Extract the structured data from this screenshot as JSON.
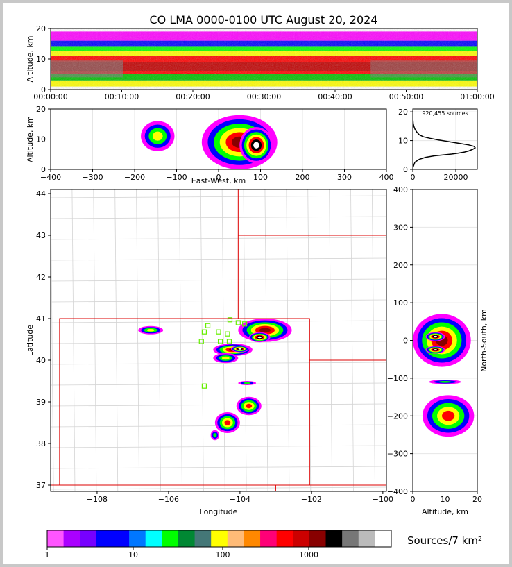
{
  "title": "CO LMA 0000-0100 UTC August 20, 2024",
  "chart_data": [
    {
      "id": "time-height",
      "type": "heatmap",
      "xlabel": "",
      "ylabel": "Altitude, km",
      "xticks": [
        "00:00:00",
        "00:10:00",
        "00:20:00",
        "00:30:00",
        "00:40:00",
        "00:50:00",
        "01:00:00"
      ],
      "yticks": [
        0,
        10,
        20
      ],
      "ylim": [
        0,
        20
      ],
      "bands": [
        {
          "from": 1,
          "to": 3,
          "color": "#ffff00"
        },
        {
          "from": 3,
          "to": 5,
          "color": "#00c000"
        },
        {
          "from": 5,
          "to": 11,
          "color": "#ff0000"
        },
        {
          "from": 6,
          "to": 9,
          "color": "#c00000"
        },
        {
          "from": 11,
          "to": 12.5,
          "color": "#ffff00"
        },
        {
          "from": 12.5,
          "to": 14,
          "color": "#00ff00"
        },
        {
          "from": 14,
          "to": 16,
          "color": "#0000ff"
        },
        {
          "from": 16,
          "to": 19,
          "color": "#ff00ff"
        }
      ]
    },
    {
      "id": "ew-altitude",
      "type": "heatmap",
      "xlabel": "East-West, km",
      "ylabel": "Altitude, km",
      "xlim": [
        -400,
        400
      ],
      "ylim": [
        0,
        20
      ],
      "xticks": [
        -400,
        -300,
        -200,
        -100,
        0,
        100,
        200,
        300,
        400
      ],
      "yticks": [
        0,
        10,
        20
      ],
      "blobs": [
        {
          "x": -145,
          "y": 11,
          "rx": 40,
          "ry": 5,
          "level": 3
        },
        {
          "x": 50,
          "y": 9,
          "rx": 90,
          "ry": 9,
          "level": 5
        },
        {
          "x": 90,
          "y": 8,
          "rx": 40,
          "ry": 6,
          "level": 6
        }
      ]
    },
    {
      "id": "altitude-histogram",
      "type": "line",
      "annotation": "920,455 sources",
      "xlim": [
        0,
        30000
      ],
      "ylim": [
        0,
        21
      ],
      "xticks": [
        0,
        20000
      ],
      "yticks": [
        0,
        10,
        20
      ],
      "x": [
        0,
        500,
        1000,
        3000,
        6000,
        10000,
        14000,
        18000,
        21000,
        24000,
        26000,
        28000,
        29000,
        28500,
        26000,
        22000,
        17000,
        12000,
        8000,
        5000,
        3000,
        1800,
        1000,
        500,
        200,
        100
      ],
      "y": [
        0.5,
        1.5,
        2.5,
        3.5,
        4.2,
        4.7,
        5.0,
        5.3,
        5.6,
        6.0,
        6.4,
        7.0,
        7.5,
        8.0,
        8.5,
        9.0,
        9.6,
        10.2,
        10.8,
        11.3,
        12.0,
        13.0,
        14.0,
        15.0,
        16.0,
        17.0
      ]
    },
    {
      "id": "plan-view-map",
      "type": "heatmap",
      "xlabel": "Longitude",
      "ylabel": "Latitude",
      "xlim": [
        -109.3,
        -99.9
      ],
      "ylim": [
        36.85,
        44.1
      ],
      "xticks": [
        -108,
        -106,
        -104,
        -102,
        -100
      ],
      "yticks": [
        37,
        38,
        39,
        40,
        41,
        42,
        43,
        44
      ],
      "stations": [
        [
          -104.9,
          40.83
        ],
        [
          -104.28,
          40.97
        ],
        [
          -104.05,
          40.9
        ],
        [
          -103.87,
          40.87
        ],
        [
          -105.0,
          40.68
        ],
        [
          -104.6,
          40.68
        ],
        [
          -104.35,
          40.63
        ],
        [
          -105.08,
          40.45
        ],
        [
          -104.55,
          40.45
        ],
        [
          -104.3,
          40.45
        ],
        [
          -105.0,
          39.38
        ]
      ],
      "blobs": [
        {
          "x": -106.5,
          "y": 40.72,
          "rx": 0.35,
          "ry": 0.1,
          "level": 3
        },
        {
          "x": -103.3,
          "y": 40.72,
          "rx": 0.75,
          "ry": 0.28,
          "level": 5
        },
        {
          "x": -103.45,
          "y": 40.55,
          "rx": 0.3,
          "ry": 0.12,
          "level": 6
        },
        {
          "x": -104.2,
          "y": 40.25,
          "rx": 0.55,
          "ry": 0.15,
          "level": 5
        },
        {
          "x": -104.0,
          "y": 40.27,
          "rx": 0.25,
          "ry": 0.08,
          "level": 6
        },
        {
          "x": -104.4,
          "y": 40.05,
          "rx": 0.35,
          "ry": 0.12,
          "level": 3
        },
        {
          "x": -103.75,
          "y": 38.9,
          "rx": 0.35,
          "ry": 0.22,
          "level": 4
        },
        {
          "x": -104.35,
          "y": 38.5,
          "rx": 0.35,
          "ry": 0.25,
          "level": 4
        },
        {
          "x": -104.7,
          "y": 38.2,
          "rx": 0.12,
          "ry": 0.12,
          "level": 2
        },
        {
          "x": -103.8,
          "y": 39.45,
          "rx": 0.25,
          "ry": 0.05,
          "level": 2
        }
      ]
    },
    {
      "id": "altitude-ns",
      "type": "heatmap",
      "xlabel": "Altitude, km",
      "ylabel": "North-South, km",
      "xlim": [
        0,
        20
      ],
      "ylim": [
        -400,
        400
      ],
      "xticks": [
        0,
        10,
        20
      ],
      "yticks": [
        -400,
        -300,
        -200,
        -100,
        0,
        100,
        200,
        300,
        400
      ],
      "blobs": [
        {
          "x": 9,
          "y": 0,
          "rx": 9,
          "ry": 70,
          "level": 5
        },
        {
          "x": 7,
          "y": 10,
          "rx": 3,
          "ry": 12,
          "level": 6
        },
        {
          "x": 7,
          "y": -25,
          "rx": 3,
          "ry": 10,
          "level": 6
        },
        {
          "x": 10,
          "y": -110,
          "rx": 5,
          "ry": 6,
          "level": 2
        },
        {
          "x": 11,
          "y": -200,
          "rx": 8,
          "ry": 55,
          "level": 4
        }
      ]
    }
  ],
  "colorbar": {
    "label": "Sources/7 km²",
    "tick_labels": [
      "1",
      "10",
      "100",
      "1000"
    ],
    "colors": [
      "#ff55ff",
      "#aa00ff",
      "#7700ff",
      "#0000ff",
      "#0000ff",
      "#0077ff",
      "#00ffff",
      "#00ff00",
      "#008833",
      "#447777",
      "#ffff00",
      "#ffbb77",
      "#ff8800",
      "#ff0077",
      "#ff0000",
      "#cc0000",
      "#880000",
      "#000000",
      "#777777",
      "#bbbbbb",
      "#ffffff"
    ]
  }
}
